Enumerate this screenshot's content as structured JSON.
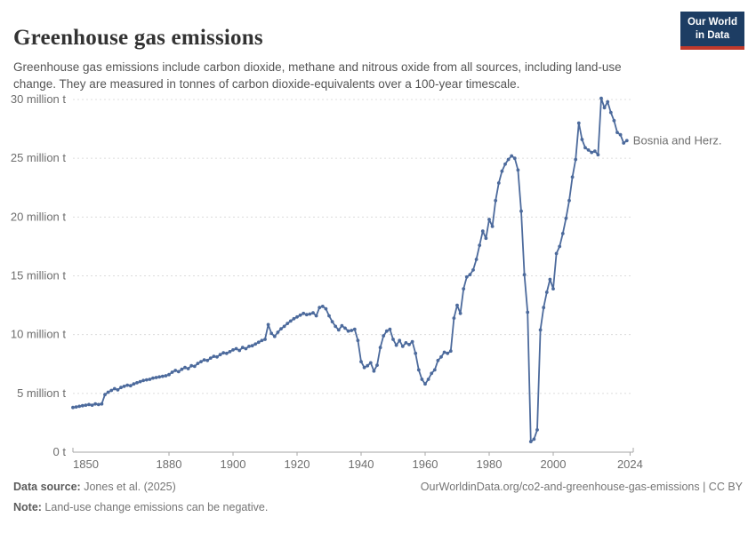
{
  "header": {
    "title": "Greenhouse gas emissions",
    "subtitle": "Greenhouse gas emissions include carbon dioxide, methane and nitrous oxide from all sources, including land-use change. They are measured in tonnes of carbon dioxide-equivalents over a 100-year timescale."
  },
  "logo": {
    "line1": "Our World",
    "line2": "in Data",
    "bg_color": "#1d3d63",
    "accent_color": "#c0392b"
  },
  "footer": {
    "data_source_label": "Data source:",
    "data_source_value": " Jones et al. (2025)",
    "note_label": "Note:",
    "note_value": " Land-use change emissions can be negative.",
    "citation": "OurWorldinData.org/co2-and-greenhouse-gas-emissions | CC BY"
  },
  "chart_data": {
    "type": "line",
    "title": "Greenhouse gas emissions",
    "entity": "Bosnia and Herz.",
    "series_name": "Bosnia and Herz.",
    "unit": "tonnes of CO2-equivalents",
    "start_year": 1850,
    "end_year": 2023,
    "xlim": [
      1850,
      2024
    ],
    "ylim": [
      0,
      30
    ],
    "grid": true,
    "legend_position": "end-of-line-label",
    "x_ticks": [
      1850,
      1880,
      1900,
      1920,
      1940,
      1960,
      1980,
      2000,
      2024
    ],
    "y_ticks": [
      {
        "value": 0,
        "label": "0 t"
      },
      {
        "value": 5,
        "label": "5 million t"
      },
      {
        "value": 10,
        "label": "10 million t"
      },
      {
        "value": 15,
        "label": "15 million t"
      },
      {
        "value": 20,
        "label": "20 million t"
      },
      {
        "value": 25,
        "label": "25 million t"
      },
      {
        "value": 30,
        "label": "30 million t"
      }
    ],
    "values_million_t": [
      3.8,
      3.85,
      3.9,
      3.95,
      4.0,
      4.05,
      4.0,
      4.1,
      4.05,
      4.1,
      4.9,
      5.1,
      5.25,
      5.4,
      5.3,
      5.5,
      5.6,
      5.7,
      5.65,
      5.8,
      5.9,
      6.0,
      6.1,
      6.15,
      6.2,
      6.3,
      6.35,
      6.4,
      6.45,
      6.5,
      6.6,
      6.8,
      6.95,
      6.85,
      7.05,
      7.2,
      7.1,
      7.35,
      7.3,
      7.55,
      7.7,
      7.85,
      7.8,
      8.0,
      8.15,
      8.1,
      8.3,
      8.45,
      8.4,
      8.55,
      8.7,
      8.8,
      8.65,
      8.9,
      8.8,
      9.0,
      9.05,
      9.2,
      9.35,
      9.5,
      9.6,
      10.85,
      10.1,
      9.85,
      10.2,
      10.5,
      10.7,
      10.95,
      11.15,
      11.35,
      11.5,
      11.65,
      11.8,
      11.7,
      11.75,
      11.85,
      11.6,
      12.3,
      12.4,
      12.2,
      11.6,
      11.1,
      10.7,
      10.4,
      10.75,
      10.55,
      10.3,
      10.35,
      10.45,
      9.5,
      7.7,
      7.2,
      7.35,
      7.6,
      6.9,
      7.4,
      8.9,
      9.9,
      10.3,
      10.45,
      9.6,
      9.1,
      9.5,
      9.0,
      9.3,
      9.15,
      9.4,
      8.4,
      7.0,
      6.2,
      5.8,
      6.2,
      6.7,
      7.0,
      7.8,
      8.1,
      8.5,
      8.4,
      8.6,
      11.4,
      12.5,
      11.8,
      13.9,
      14.9,
      15.1,
      15.5,
      16.4,
      17.6,
      18.8,
      18.2,
      19.8,
      19.2,
      21.4,
      22.9,
      23.9,
      24.5,
      24.9,
      25.2,
      25.0,
      24.0,
      20.5,
      15.1,
      11.9,
      0.9,
      1.1,
      1.9,
      10.4,
      12.3,
      13.6,
      14.7,
      13.9,
      16.9,
      17.5,
      18.6,
      19.9,
      21.4,
      23.4,
      24.9,
      28.0,
      26.6,
      25.9,
      25.7,
      25.5,
      25.6,
      25.3,
      30.1,
      29.3,
      29.8,
      28.9,
      28.2,
      27.2,
      27.0,
      26.3,
      26.5
    ],
    "line_color": "#4c6a9c",
    "grid_color": "#dcdcdc",
    "axis_color": "#a5a5a5",
    "tick_text_color": "#6e6e6e"
  }
}
